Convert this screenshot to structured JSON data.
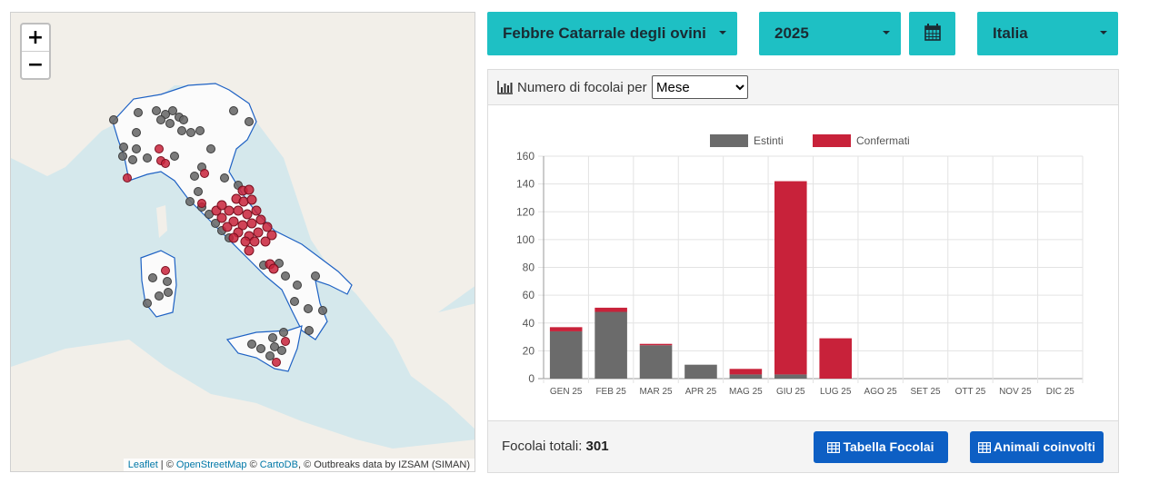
{
  "map": {
    "zoom_in": "+",
    "zoom_out": "−",
    "attribution": {
      "leaflet": "Leaflet",
      "sep1": " | © ",
      "osm": "OpenStreetMap",
      "sep2": " © ",
      "carto": "CartoDB",
      "rest": ", © Outbreaks data by IZSAM (SIMAN)"
    },
    "colors": {
      "estinti": "#6b6b6b",
      "confermati": "#c8223a",
      "sea": "#d5e8ec",
      "land": "#f2efe9",
      "border": "#1f62c4"
    }
  },
  "filters": {
    "disease": "Febbre Catarrale degli ovini (B",
    "year": "2025",
    "calendar_icon": "calendar-icon",
    "country": "Italia"
  },
  "panel": {
    "header_label": "Numero di focolai per",
    "group_by_selected": "Mese",
    "total_label": "Focolai totali:",
    "total_value": "301",
    "btn_table": "Tabella Focolai",
    "btn_animals": "Animali coinvolti"
  },
  "chart_data": {
    "type": "bar",
    "stacked": true,
    "categories": [
      "GEN 25",
      "FEB 25",
      "MAR 25",
      "APR 25",
      "MAG 25",
      "GIU 25",
      "LUG 25",
      "AGO 25",
      "SET 25",
      "OTT 25",
      "NOV 25",
      "DIC 25"
    ],
    "series": [
      {
        "name": "Estinti",
        "color": "#6b6b6b",
        "values": [
          34,
          48,
          24,
          10,
          3,
          3,
          0,
          0,
          0,
          0,
          0,
          0
        ]
      },
      {
        "name": "Confermati",
        "color": "#c8223a",
        "values": [
          3,
          3,
          1,
          0,
          4,
          139,
          29,
          0,
          0,
          0,
          0,
          0
        ]
      }
    ],
    "ylim": [
      0,
      160
    ],
    "yticks": [
      0,
      20,
      40,
      60,
      80,
      100,
      120,
      140,
      160
    ],
    "grid": true,
    "legend": "top-center"
  }
}
